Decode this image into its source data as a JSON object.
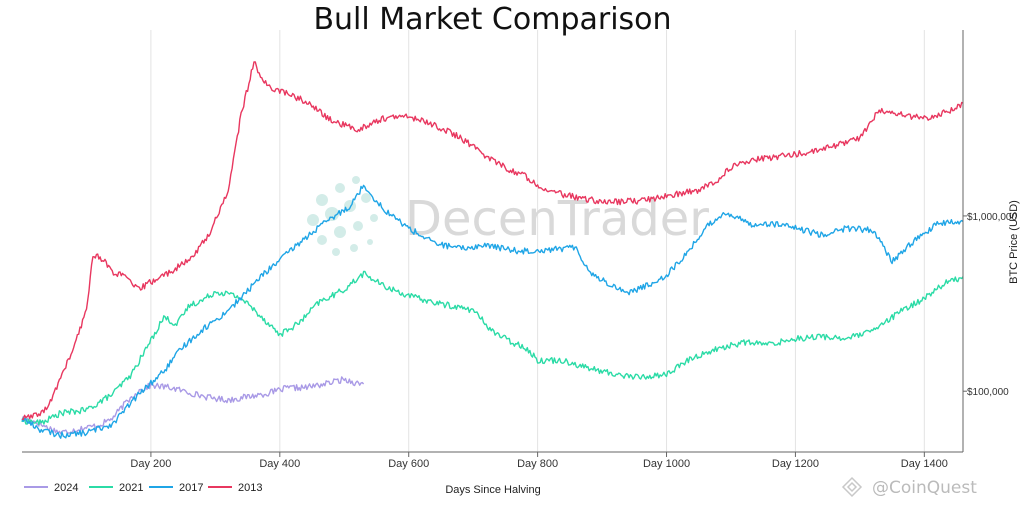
{
  "chart_data": {
    "type": "line",
    "title": "Bull Market Comparison",
    "xlabel": "Days Since Halving",
    "ylabel": "BTC Price (USD)",
    "x_ticks": [
      {
        "value": 200,
        "label": "Day 200"
      },
      {
        "value": 400,
        "label": "Day 400"
      },
      {
        "value": 600,
        "label": "Day 600"
      },
      {
        "value": 800,
        "label": "Day 800"
      },
      {
        "value": 1000,
        "label": "Day 1000"
      },
      {
        "value": 1200,
        "label": "Day 1200"
      },
      {
        "value": 1400,
        "label": "Day 1400"
      }
    ],
    "y_ticks": [
      {
        "value": 100000,
        "label": "$100,000"
      },
      {
        "value": 1000000,
        "label": "$1,000,000"
      }
    ],
    "xlim": [
      0,
      1460
    ],
    "ylim": [
      45000,
      11500000
    ],
    "y_scale": "log",
    "grid": "vertical",
    "legend_position": "bottom-left",
    "series": [
      {
        "name": "2024",
        "color": "#a99ae6",
        "points": [
          [
            0,
            70000
          ],
          [
            20,
            67000
          ],
          [
            40,
            62000
          ],
          [
            60,
            58000
          ],
          [
            80,
            60000
          ],
          [
            100,
            62000
          ],
          [
            120,
            64000
          ],
          [
            140,
            70000
          ],
          [
            160,
            85000
          ],
          [
            180,
            100000
          ],
          [
            200,
            108000
          ],
          [
            230,
            105000
          ],
          [
            260,
            98000
          ],
          [
            290,
            92000
          ],
          [
            320,
            89000
          ],
          [
            350,
            93000
          ],
          [
            380,
            97000
          ],
          [
            410,
            104000
          ],
          [
            440,
            105000
          ],
          [
            470,
            110000
          ],
          [
            500,
            117000
          ],
          [
            520,
            111000
          ],
          [
            530,
            110000
          ]
        ]
      },
      {
        "name": "2021",
        "color": "#2bdba6",
        "points": [
          [
            0,
            68000
          ],
          [
            30,
            66000
          ],
          [
            60,
            75000
          ],
          [
            100,
            78000
          ],
          [
            140,
            96000
          ],
          [
            170,
            125000
          ],
          [
            200,
            195000
          ],
          [
            220,
            265000
          ],
          [
            240,
            240000
          ],
          [
            260,
            310000
          ],
          [
            280,
            330000
          ],
          [
            300,
            370000
          ],
          [
            320,
            360000
          ],
          [
            340,
            340000
          ],
          [
            370,
            270000
          ],
          [
            400,
            210000
          ],
          [
            430,
            245000
          ],
          [
            460,
            320000
          ],
          [
            500,
            380000
          ],
          [
            530,
            470000
          ],
          [
            560,
            400000
          ],
          [
            600,
            350000
          ],
          [
            640,
            320000
          ],
          [
            680,
            300000
          ],
          [
            700,
            290000
          ],
          [
            730,
            220000
          ],
          [
            760,
            190000
          ],
          [
            780,
            180000
          ],
          [
            800,
            150000
          ],
          [
            840,
            150000
          ],
          [
            880,
            135000
          ],
          [
            920,
            125000
          ],
          [
            960,
            120000
          ],
          [
            1000,
            125000
          ],
          [
            1040,
            155000
          ],
          [
            1080,
            175000
          ],
          [
            1120,
            190000
          ],
          [
            1160,
            185000
          ],
          [
            1200,
            200000
          ],
          [
            1240,
            205000
          ],
          [
            1280,
            200000
          ],
          [
            1320,
            220000
          ],
          [
            1360,
            280000
          ],
          [
            1400,
            340000
          ],
          [
            1430,
            410000
          ],
          [
            1460,
            450000
          ]
        ]
      },
      {
        "name": "2017",
        "color": "#1fa5e6",
        "points": [
          [
            0,
            70000
          ],
          [
            30,
            60000
          ],
          [
            60,
            56000
          ],
          [
            100,
            58000
          ],
          [
            140,
            65000
          ],
          [
            180,
            95000
          ],
          [
            220,
            130000
          ],
          [
            250,
            180000
          ],
          [
            280,
            225000
          ],
          [
            310,
            270000
          ],
          [
            340,
            340000
          ],
          [
            370,
            450000
          ],
          [
            400,
            560000
          ],
          [
            430,
            700000
          ],
          [
            460,
            860000
          ],
          [
            510,
            1150000
          ],
          [
            530,
            1500000
          ],
          [
            560,
            1100000
          ],
          [
            600,
            850000
          ],
          [
            640,
            700000
          ],
          [
            680,
            650000
          ],
          [
            720,
            680000
          ],
          [
            770,
            630000
          ],
          [
            810,
            640000
          ],
          [
            860,
            660000
          ],
          [
            880,
            480000
          ],
          [
            910,
            410000
          ],
          [
            940,
            365000
          ],
          [
            970,
            400000
          ],
          [
            1000,
            460000
          ],
          [
            1030,
            600000
          ],
          [
            1060,
            850000
          ],
          [
            1090,
            1050000
          ],
          [
            1130,
            900000
          ],
          [
            1170,
            900000
          ],
          [
            1200,
            850000
          ],
          [
            1240,
            780000
          ],
          [
            1280,
            850000
          ],
          [
            1320,
            830000
          ],
          [
            1350,
            550000
          ],
          [
            1380,
            700000
          ],
          [
            1420,
            900000
          ],
          [
            1460,
            930000
          ]
        ]
      },
      {
        "name": "2013",
        "color": "#e8375f",
        "points": [
          [
            0,
            70000
          ],
          [
            20,
            72000
          ],
          [
            40,
            80000
          ],
          [
            60,
            120000
          ],
          [
            80,
            175000
          ],
          [
            100,
            290000
          ],
          [
            110,
            600000
          ],
          [
            125,
            570000
          ],
          [
            140,
            480000
          ],
          [
            160,
            450000
          ],
          [
            180,
            380000
          ],
          [
            200,
            420000
          ],
          [
            230,
            480000
          ],
          [
            260,
            560000
          ],
          [
            290,
            780000
          ],
          [
            320,
            1400000
          ],
          [
            340,
            3800000
          ],
          [
            360,
            7500000
          ],
          [
            380,
            5500000
          ],
          [
            400,
            5200000
          ],
          [
            440,
            4500000
          ],
          [
            480,
            3500000
          ],
          [
            520,
            3100000
          ],
          [
            560,
            3600000
          ],
          [
            600,
            3700000
          ],
          [
            640,
            3300000
          ],
          [
            680,
            2800000
          ],
          [
            720,
            2200000
          ],
          [
            760,
            1800000
          ],
          [
            780,
            1700000
          ],
          [
            800,
            1500000
          ],
          [
            830,
            1350000
          ],
          [
            870,
            1250000
          ],
          [
            910,
            1200000
          ],
          [
            960,
            1220000
          ],
          [
            1000,
            1300000
          ],
          [
            1050,
            1400000
          ],
          [
            1080,
            1600000
          ],
          [
            1100,
            1900000
          ],
          [
            1140,
            2100000
          ],
          [
            1180,
            2200000
          ],
          [
            1220,
            2300000
          ],
          [
            1260,
            2500000
          ],
          [
            1300,
            2800000
          ],
          [
            1330,
            4000000
          ],
          [
            1360,
            3800000
          ],
          [
            1400,
            3600000
          ],
          [
            1440,
            4000000
          ],
          [
            1460,
            4400000
          ]
        ]
      }
    ]
  },
  "watermark": {
    "text": "DecenTrader"
  },
  "credit": {
    "text": "@CoinQuest"
  }
}
